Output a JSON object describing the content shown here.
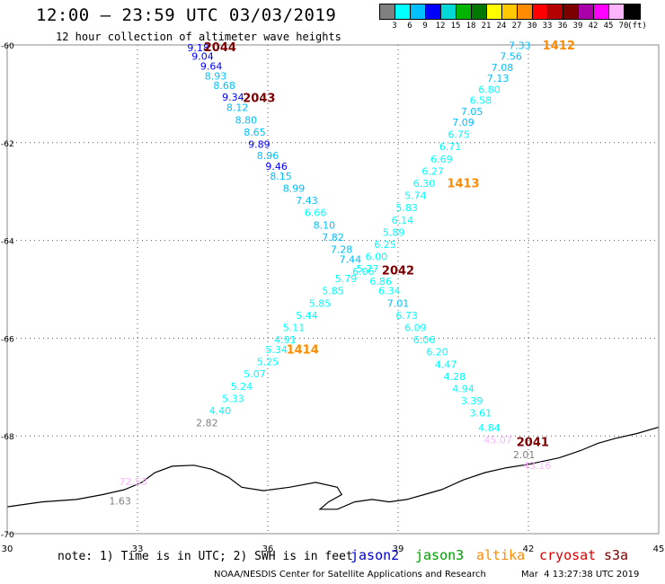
{
  "header": {
    "title": "12:00 – 23:59 UTC 03/03/2019",
    "subtitle": "12 hour collection of altimeter wave heights"
  },
  "legend": {
    "colors": [
      "#808080",
      "#00ffff",
      "#00bfff",
      "#0000ff",
      "#00d8d8",
      "#00b400",
      "#007800",
      "#ffff00",
      "#ffc800",
      "#ff8c00",
      "#ff0000",
      "#b40000",
      "#7d0000",
      "#aa00aa",
      "#ff00ff",
      "#ffb4ff",
      "#000000"
    ],
    "labels": [
      "3",
      "6",
      "9",
      "12",
      "15",
      "18",
      "21",
      "24",
      "27",
      "30",
      "33",
      "36",
      "39",
      "42",
      "45",
      "70",
      "(ft)"
    ]
  },
  "map": {
    "lon_range": [
      30,
      45
    ],
    "lat_range": [
      -70,
      -60
    ],
    "lon_ticks": [
      "30",
      "33",
      "36",
      "39",
      "42",
      "45"
    ],
    "lat_ticks": [
      "-60",
      "-62",
      "-64",
      "-66",
      "-68",
      "-70"
    ],
    "satellite_colors": {
      "jason2": "#0000cc",
      "jason3": "#00a000",
      "altika": "#ff8c00",
      "cryosat": "#dd0000",
      "s3a": "#7d0000"
    }
  },
  "tracks": [
    {
      "satellite": "s3a",
      "passes": [
        {
          "label": "2044",
          "lon": 34.9,
          "lat": -60.06
        },
        {
          "label": "2043",
          "lon": 35.8,
          "lat": -61.1
        },
        {
          "label": "2042",
          "lon": 39.0,
          "lat": -64.63
        },
        {
          "label": "2041",
          "lon": 42.1,
          "lat": -68.14
        }
      ],
      "points": [
        {
          "value": "9.18",
          "lon": 34.4,
          "lat": -60.07,
          "color": "#0000ff"
        },
        {
          "value": "9.04",
          "lon": 34.5,
          "lat": -60.25,
          "color": "#0000ff"
        },
        {
          "value": "9.64",
          "lon": 34.7,
          "lat": -60.45,
          "color": "#0000ff"
        },
        {
          "value": "8.93",
          "lon": 34.8,
          "lat": -60.65,
          "color": "#00bfff"
        },
        {
          "value": "8.68",
          "lon": 35.0,
          "lat": -60.85,
          "color": "#00bfff"
        },
        {
          "value": "9.34",
          "lon": 35.2,
          "lat": -61.08,
          "color": "#0000ff"
        },
        {
          "value": "8.12",
          "lon": 35.3,
          "lat": -61.3,
          "color": "#00bfff"
        },
        {
          "value": "8.80",
          "lon": 35.5,
          "lat": -61.55,
          "color": "#00bfff"
        },
        {
          "value": "8.65",
          "lon": 35.7,
          "lat": -61.8,
          "color": "#00bfff"
        },
        {
          "value": "9.89",
          "lon": 35.8,
          "lat": -62.05,
          "color": "#0000ff"
        },
        {
          "value": "8.96",
          "lon": 36.0,
          "lat": -62.28,
          "color": "#00bfff"
        },
        {
          "value": "9.46",
          "lon": 36.2,
          "lat": -62.5,
          "color": "#0000ff"
        },
        {
          "value": "8.15",
          "lon": 36.3,
          "lat": -62.7,
          "color": "#00bfff"
        },
        {
          "value": "8.99",
          "lon": 36.6,
          "lat": -62.95,
          "color": "#00bfff"
        },
        {
          "value": "7.43",
          "lon": 36.9,
          "lat": -63.2,
          "color": "#00bfff"
        },
        {
          "value": "6.66",
          "lon": 37.1,
          "lat": -63.45,
          "color": "#00ffff"
        },
        {
          "value": "8.10",
          "lon": 37.3,
          "lat": -63.7,
          "color": "#00bfff"
        },
        {
          "value": "7.82",
          "lon": 37.5,
          "lat": -63.95,
          "color": "#00bfff"
        },
        {
          "value": "7.28",
          "lon": 37.7,
          "lat": -64.2,
          "color": "#00bfff"
        },
        {
          "value": "7.44",
          "lon": 37.9,
          "lat": -64.4,
          "color": "#00bfff"
        },
        {
          "value": "6.06",
          "lon": 38.2,
          "lat": -64.65,
          "color": "#00ffff"
        },
        {
          "value": "6.86",
          "lon": 38.6,
          "lat": -64.85,
          "color": "#00ffff"
        },
        {
          "value": "6.34",
          "lon": 38.8,
          "lat": -65.05,
          "color": "#00ffff"
        },
        {
          "value": "7.01",
          "lon": 39.0,
          "lat": -65.3,
          "color": "#00bfff"
        },
        {
          "value": "6.73",
          "lon": 39.2,
          "lat": -65.55,
          "color": "#00ffff"
        },
        {
          "value": "6.09",
          "lon": 39.4,
          "lat": -65.8,
          "color": "#00ffff"
        },
        {
          "value": "6.06",
          "lon": 39.6,
          "lat": -66.05,
          "color": "#00ffff"
        },
        {
          "value": "6.20",
          "lon": 39.9,
          "lat": -66.3,
          "color": "#00ffff"
        },
        {
          "value": "4.47",
          "lon": 40.1,
          "lat": -66.55,
          "color": "#00ffff"
        },
        {
          "value": "4.28",
          "lon": 40.3,
          "lat": -66.8,
          "color": "#00ffff"
        },
        {
          "value": "4.94",
          "lon": 40.5,
          "lat": -67.05,
          "color": "#00ffff"
        },
        {
          "value": "3.39",
          "lon": 40.7,
          "lat": -67.3,
          "color": "#00ffff"
        },
        {
          "value": "3.61",
          "lon": 40.9,
          "lat": -67.55,
          "color": "#00ffff"
        },
        {
          "value": "4.84",
          "lon": 41.1,
          "lat": -67.85,
          "color": "#00ffff"
        },
        {
          "value": "45.07",
          "lon": 41.3,
          "lat": -68.1,
          "color": "#ffb4ff"
        },
        {
          "value": "2.01",
          "lon": 41.9,
          "lat": -68.4,
          "color": "#808080"
        },
        {
          "value": "43.16",
          "lon": 42.2,
          "lat": -68.62,
          "color": "#ffb4ff"
        }
      ]
    },
    {
      "satellite": "altika",
      "passes": [
        {
          "label": "1412",
          "lon": 42.7,
          "lat": -60.03
        },
        {
          "label": "1413",
          "lon": 40.5,
          "lat": -62.85
        },
        {
          "label": "1414",
          "lon": 36.8,
          "lat": -66.25
        }
      ],
      "points": [
        {
          "value": "7.33",
          "lon": 41.8,
          "lat": -60.03,
          "color": "#00bfff"
        },
        {
          "value": "7.56",
          "lon": 41.6,
          "lat": -60.25,
          "color": "#00bfff"
        },
        {
          "value": "7.08",
          "lon": 41.4,
          "lat": -60.48,
          "color": "#00bfff"
        },
        {
          "value": "7.13",
          "lon": 41.3,
          "lat": -60.7,
          "color": "#00bfff"
        },
        {
          "value": "6.80",
          "lon": 41.1,
          "lat": -60.93,
          "color": "#00ffff"
        },
        {
          "value": "6.58",
          "lon": 40.9,
          "lat": -61.15,
          "color": "#00ffff"
        },
        {
          "value": "7.05",
          "lon": 40.7,
          "lat": -61.38,
          "color": "#00bfff"
        },
        {
          "value": "7.09",
          "lon": 40.5,
          "lat": -61.6,
          "color": "#00bfff"
        },
        {
          "value": "6.75",
          "lon": 40.4,
          "lat": -61.85,
          "color": "#00ffff"
        },
        {
          "value": "6.71",
          "lon": 40.2,
          "lat": -62.1,
          "color": "#00ffff"
        },
        {
          "value": "6.69",
          "lon": 40.0,
          "lat": -62.35,
          "color": "#00ffff"
        },
        {
          "value": "6.27",
          "lon": 39.8,
          "lat": -62.6,
          "color": "#00ffff"
        },
        {
          "value": "6.30",
          "lon": 39.6,
          "lat": -62.85,
          "color": "#00ffff"
        },
        {
          "value": "5.74",
          "lon": 39.4,
          "lat": -63.1,
          "color": "#00ffff"
        },
        {
          "value": "5.83",
          "lon": 39.2,
          "lat": -63.35,
          "color": "#00ffff"
        },
        {
          "value": "6.14",
          "lon": 39.1,
          "lat": -63.6,
          "color": "#00ffff"
        },
        {
          "value": "5.89",
          "lon": 38.9,
          "lat": -63.85,
          "color": "#00ffff"
        },
        {
          "value": "6.25",
          "lon": 38.7,
          "lat": -64.1,
          "color": "#00ffff"
        },
        {
          "value": "6.00",
          "lon": 38.5,
          "lat": -64.35,
          "color": "#00ffff"
        },
        {
          "value": "5.77",
          "lon": 38.3,
          "lat": -64.6,
          "color": "#00ffff"
        },
        {
          "value": "5.79",
          "lon": 37.8,
          "lat": -64.8,
          "color": "#00ffff"
        },
        {
          "value": "5.85",
          "lon": 37.5,
          "lat": -65.05,
          "color": "#00ffff"
        },
        {
          "value": "5.85",
          "lon": 37.2,
          "lat": -65.3,
          "color": "#00ffff"
        },
        {
          "value": "5.44",
          "lon": 36.9,
          "lat": -65.55,
          "color": "#00ffff"
        },
        {
          "value": "5.11",
          "lon": 36.6,
          "lat": -65.8,
          "color": "#00ffff"
        },
        {
          "value": "4.91",
          "lon": 36.4,
          "lat": -66.05,
          "color": "#00ffff"
        },
        {
          "value": "5.34",
          "lon": 36.2,
          "lat": -66.25,
          "color": "#00ffff"
        },
        {
          "value": "5.25",
          "lon": 36.0,
          "lat": -66.5,
          "color": "#00ffff"
        },
        {
          "value": "5.07",
          "lon": 35.7,
          "lat": -66.75,
          "color": "#00ffff"
        },
        {
          "value": "5.24",
          "lon": 35.4,
          "lat": -67.0,
          "color": "#00ffff"
        },
        {
          "value": "5.33",
          "lon": 35.2,
          "lat": -67.25,
          "color": "#00ffff"
        },
        {
          "value": "4.40",
          "lon": 34.9,
          "lat": -67.5,
          "color": "#00ffff"
        },
        {
          "value": "2.82",
          "lon": 34.6,
          "lat": -67.75,
          "color": "#808080"
        }
      ]
    },
    {
      "satellite": "coast",
      "passes": [],
      "points": [
        {
          "value": "72.53",
          "lon": 32.9,
          "lat": -68.95,
          "color": "#ffb4ff"
        },
        {
          "value": "1.63",
          "lon": 32.6,
          "lat": -69.35,
          "color": "#808080"
        }
      ]
    }
  ],
  "coastline": [
    [
      30.0,
      -69.45
    ],
    [
      30.8,
      -69.35
    ],
    [
      31.6,
      -69.3
    ],
    [
      32.2,
      -69.2
    ],
    [
      32.7,
      -69.1
    ],
    [
      33.1,
      -68.95
    ],
    [
      33.4,
      -68.75
    ],
    [
      33.8,
      -68.62
    ],
    [
      34.3,
      -68.6
    ],
    [
      34.7,
      -68.68
    ],
    [
      35.1,
      -68.85
    ],
    [
      35.4,
      -69.05
    ],
    [
      35.9,
      -69.12
    ],
    [
      36.5,
      -69.05
    ],
    [
      37.1,
      -68.95
    ],
    [
      37.6,
      -69.05
    ],
    [
      37.7,
      -69.2
    ],
    [
      37.4,
      -69.35
    ],
    [
      37.2,
      -69.5
    ],
    [
      37.6,
      -69.5
    ],
    [
      38.0,
      -69.35
    ],
    [
      38.4,
      -69.3
    ],
    [
      38.8,
      -69.35
    ],
    [
      39.2,
      -69.3
    ],
    [
      39.6,
      -69.2
    ],
    [
      40.0,
      -69.1
    ],
    [
      40.5,
      -68.9
    ],
    [
      41.0,
      -68.75
    ],
    [
      41.5,
      -68.65
    ],
    [
      42.0,
      -68.58
    ],
    [
      42.7,
      -68.45
    ],
    [
      43.2,
      -68.3
    ],
    [
      43.6,
      -68.15
    ],
    [
      44.0,
      -68.05
    ],
    [
      44.5,
      -67.95
    ],
    [
      45.0,
      -67.82
    ]
  ],
  "footer": {
    "note": "note: 1) Time is in UTC; 2) SWH is in feet",
    "satellites": [
      {
        "name": "jason2",
        "color": "#0000cc"
      },
      {
        "name": "jason3",
        "color": "#00a000"
      },
      {
        "name": "altika",
        "color": "#ff8c00"
      },
      {
        "name": "cryosat",
        "color": "#dd0000"
      },
      {
        "name": "s3a",
        "color": "#7d0000"
      }
    ],
    "credit": "NOAA/NESDIS Center for Satellite Applications and Research",
    "timestamp": "Mar  4 13:27:38 UTC 2019"
  }
}
